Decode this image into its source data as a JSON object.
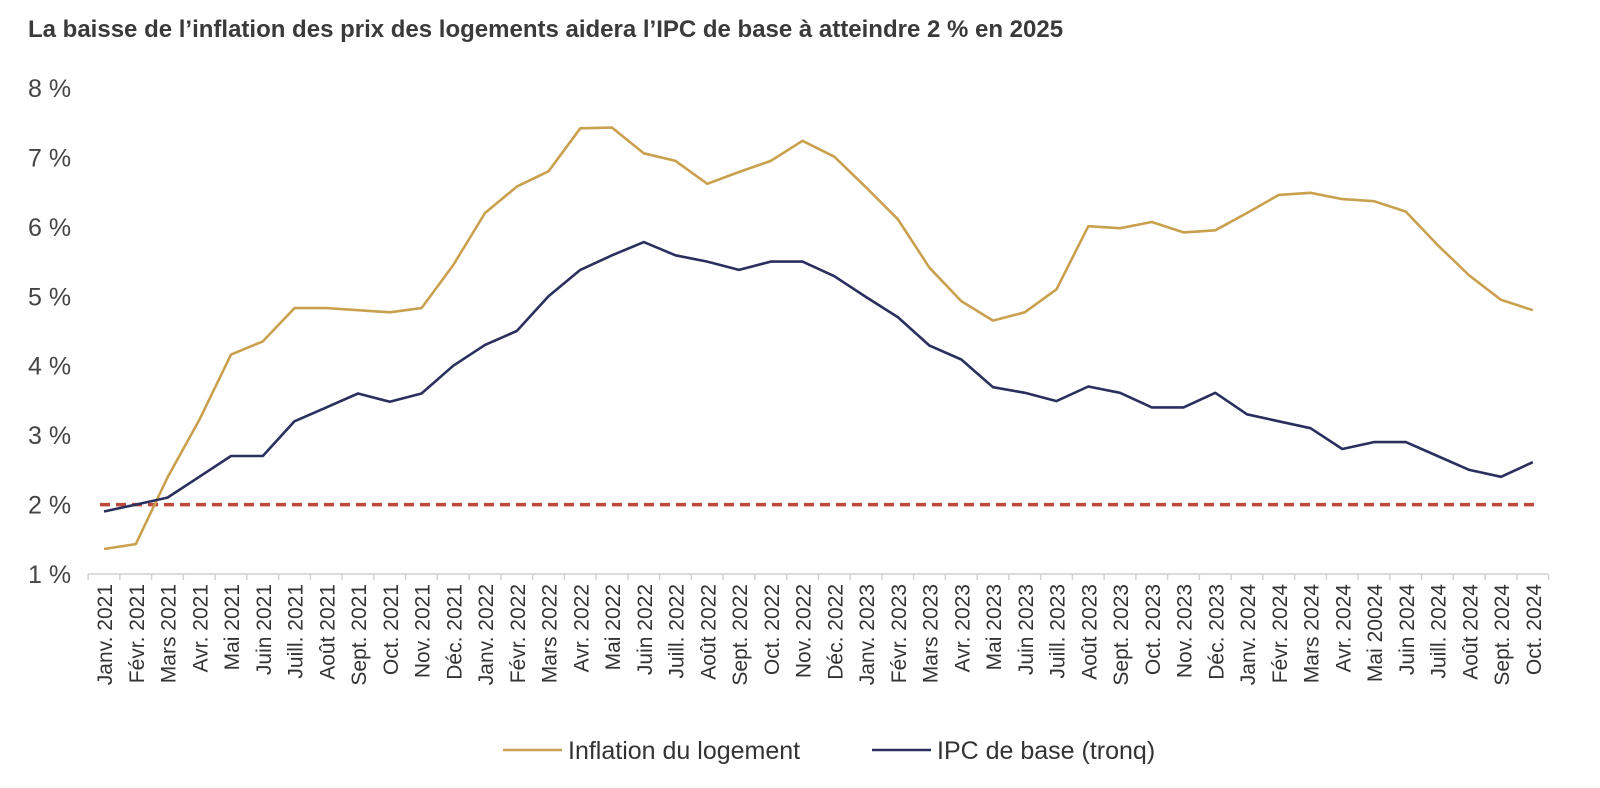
{
  "chart_data": {
    "type": "line",
    "title": "La baisse de l’inflation des prix des logements aidera l’IPC de base à atteindre 2 % en 2025",
    "ylim": [
      1,
      8
    ],
    "yticks": [
      "1 %",
      "2 %",
      "3 %",
      "4 %",
      "5 %",
      "6 %",
      "7 %",
      "8 %"
    ],
    "grid": false,
    "legend_position": "bottom",
    "x": [
      "Janv. 2021",
      "Févr. 2021",
      "Mars 2021",
      "Avr. 2021",
      "Mai 2021",
      "Juin 2021",
      "Juill. 2021",
      "Août 2021",
      "Sept. 2021",
      "Oct. 2021",
      "Nov. 2021",
      "Déc. 2021",
      "Janv. 2022",
      "Févr. 2022",
      "Mars 2022",
      "Avr. 2022",
      "Mai 2022",
      "Juin 2022",
      "Juill. 2022",
      "Août 2022",
      "Sept. 2022",
      "Oct. 2022",
      "Nov. 2022",
      "Déc. 2022",
      "Janv. 2023",
      "Févr. 2023",
      "Mars 2023",
      "Avr. 2023",
      "Mai 2023",
      "Juin 2023",
      "Juill. 2023",
      "Août 2023",
      "Sept. 2023",
      "Oct. 2023",
      "Nov. 2023",
      "Déc. 2023",
      "Janv. 2024",
      "Févr. 2024",
      "Mars 2024",
      "Avr. 2024",
      "Mai 20024",
      "Juin 2024",
      "Juill. 2024",
      "Août 2024",
      "Sept. 2024",
      "Oct. 2024"
    ],
    "series": [
      {
        "name": "Inflation du logement",
        "color": "#C9A04E",
        "values": [
          1.36,
          1.43,
          2.39,
          3.22,
          4.16,
          4.35,
          4.83,
          4.83,
          4.8,
          4.77,
          4.83,
          5.45,
          6.2,
          6.58,
          6.8,
          7.42,
          7.43,
          7.06,
          6.95,
          6.62,
          6.79,
          6.95,
          7.24,
          7.01,
          6.57,
          6.11,
          5.41,
          4.93,
          4.65,
          4.77,
          5.1,
          6.01,
          5.98,
          6.07,
          5.92,
          5.95,
          6.2,
          6.46,
          6.49,
          6.4,
          6.37,
          6.22,
          5.74,
          5.3,
          4.95,
          4.8
        ]
      },
      {
        "name": "IPC de base (tronq)",
        "color": "#2B2F5E",
        "values": [
          1.9,
          2.0,
          2.1,
          2.4,
          2.7,
          2.7,
          3.2,
          3.4,
          3.6,
          3.48,
          3.6,
          4.0,
          4.3,
          4.5,
          5.0,
          5.38,
          5.59,
          5.78,
          5.59,
          5.5,
          5.38,
          5.5,
          5.5,
          5.29,
          4.99,
          4.7,
          4.29,
          4.09,
          3.69,
          3.61,
          3.49,
          3.7,
          3.61,
          3.4,
          3.4,
          3.61,
          3.3,
          3.2,
          3.1,
          2.8,
          2.9,
          2.9,
          2.7,
          2.5,
          2.4,
          2.61
        ]
      }
    ],
    "target": {
      "value": 2.0,
      "color": "#C0483A"
    },
    "axis_color": "#D0D0D0"
  }
}
